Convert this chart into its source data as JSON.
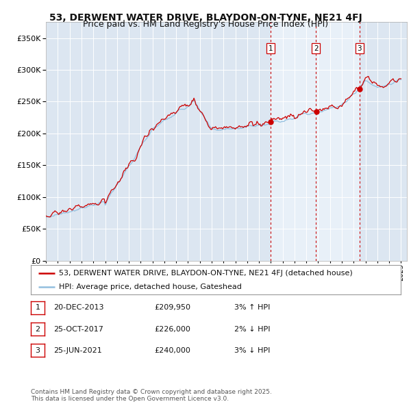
{
  "title": "53, DERWENT WATER DRIVE, BLAYDON-ON-TYNE, NE21 4FJ",
  "subtitle": "Price paid vs. HM Land Registry's House Price Index (HPI)",
  "ylim": [
    0,
    375000
  ],
  "yticks": [
    0,
    50000,
    100000,
    150000,
    200000,
    250000,
    300000,
    350000
  ],
  "x_start_year": 1995,
  "x_end_year": 2025,
  "background_color": "#ffffff",
  "plot_bg_color": "#dce6f1",
  "plot_bg_shaded": "#e8f0f8",
  "grid_color": "#ffffff",
  "hpi_color": "#92bfdf",
  "price_color": "#cc0000",
  "vline_color": "#cc0000",
  "transaction_markers": [
    {
      "year": 2013.97,
      "price": 209950,
      "label": "1"
    },
    {
      "year": 2017.82,
      "price": 226000,
      "label": "2"
    },
    {
      "year": 2021.49,
      "price": 240000,
      "label": "3"
    }
  ],
  "legend_price_label": "53, DERWENT WATER DRIVE, BLAYDON-ON-TYNE, NE21 4FJ (detached house)",
  "legend_hpi_label": "HPI: Average price, detached house, Gateshead",
  "table_rows": [
    [
      "1",
      "20-DEC-2013",
      "£209,950",
      "3% ↑ HPI"
    ],
    [
      "2",
      "25-OCT-2017",
      "£226,000",
      "2% ↓ HPI"
    ],
    [
      "3",
      "25-JUN-2021",
      "£240,000",
      "3% ↓ HPI"
    ]
  ],
  "footer": "Contains HM Land Registry data © Crown copyright and database right 2025.\nThis data is licensed under the Open Government Licence v3.0.",
  "title_fontsize": 10,
  "subtitle_fontsize": 9,
  "axis_fontsize": 8,
  "legend_fontsize": 8,
  "table_fontsize": 8,
  "footer_fontsize": 6.5
}
